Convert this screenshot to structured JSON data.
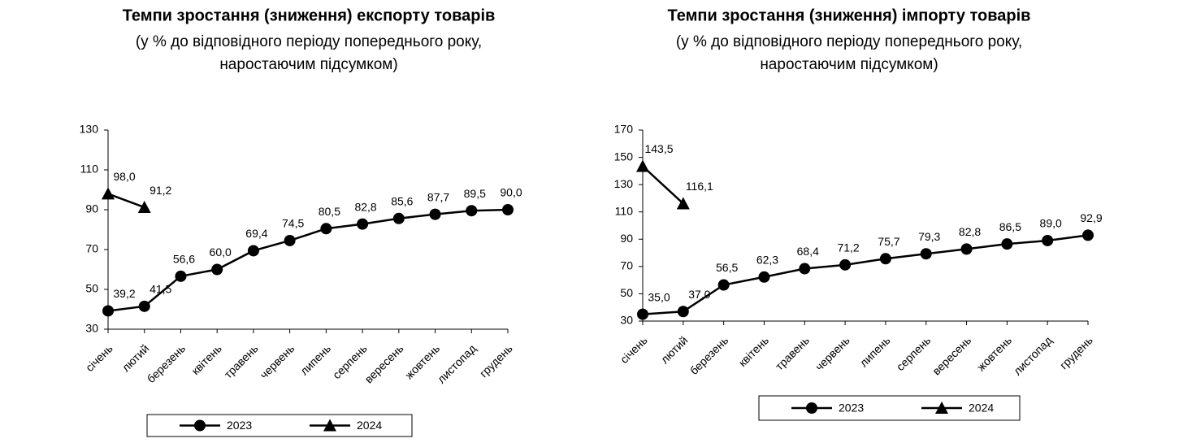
{
  "chart_data": [
    {
      "type": "line",
      "title": "Темпи зростання (зниження) експорту товарів",
      "subtitle": [
        "(у % до відповідного періоду попереднього року,",
        "наростаючим підсумком)"
      ],
      "categories": [
        "січень",
        "лютий",
        "березень",
        "квітень",
        "травень",
        "червень",
        "липень",
        "серпень",
        "вересень",
        "жовтень",
        "листопад",
        "грудень"
      ],
      "series": [
        {
          "name": "2023",
          "color": "#000000",
          "marker": "circle",
          "values": [
            39.2,
            41.5,
            56.6,
            60.0,
            69.4,
            74.5,
            80.5,
            82.8,
            85.6,
            87.7,
            89.5,
            90.0
          ],
          "value_labels": [
            "39,2",
            "41,5",
            "56,6",
            "60,0",
            "69,4",
            "74,5",
            "80,5",
            "82,8",
            "85,6",
            "87,7",
            "89,5",
            "90,0"
          ]
        },
        {
          "name": "2024",
          "color": "#000000",
          "marker": "triangle",
          "values": [
            98.0,
            91.2,
            null,
            null,
            null,
            null,
            null,
            null,
            null,
            null,
            null,
            null
          ],
          "value_labels": [
            "98,0",
            "91,2",
            null,
            null,
            null,
            null,
            null,
            null,
            null,
            null,
            null,
            null
          ]
        }
      ],
      "ylim": [
        30,
        130
      ],
      "yticks": [
        30,
        50,
        70,
        90,
        110,
        130
      ],
      "legend": "bottom"
    },
    {
      "type": "line",
      "title": "Темпи зростання (зниження) імпорту товарів",
      "subtitle": [
        "(у % до відповідного періоду попереднього року,",
        "наростаючим підсумком)"
      ],
      "categories": [
        "січень",
        "лютий",
        "березень",
        "квітень",
        "травень",
        "червень",
        "липень",
        "серпень",
        "вересень",
        "жовтень",
        "листопад",
        "грудень"
      ],
      "series": [
        {
          "name": "2023",
          "color": "#000000",
          "marker": "circle",
          "values": [
            35.0,
            37.0,
            56.5,
            62.3,
            68.4,
            71.2,
            75.7,
            79.3,
            82.8,
            86.5,
            89.0,
            92.9
          ],
          "value_labels": [
            "35,0",
            "37,0",
            "56,5",
            "62,3",
            "68,4",
            "71,2",
            "75,7",
            "79,3",
            "82,8",
            "86,5",
            "89,0",
            "92,9"
          ]
        },
        {
          "name": "2024",
          "color": "#000000",
          "marker": "triangle",
          "values": [
            143.5,
            116.1,
            null,
            null,
            null,
            null,
            null,
            null,
            null,
            null,
            null,
            null
          ],
          "value_labels": [
            "143,5",
            "116,1",
            null,
            null,
            null,
            null,
            null,
            null,
            null,
            null,
            null,
            null
          ]
        }
      ],
      "ylim": [
        30,
        170
      ],
      "yticks": [
        30,
        50,
        70,
        90,
        110,
        130,
        150,
        170
      ],
      "legend": "bottom"
    }
  ]
}
